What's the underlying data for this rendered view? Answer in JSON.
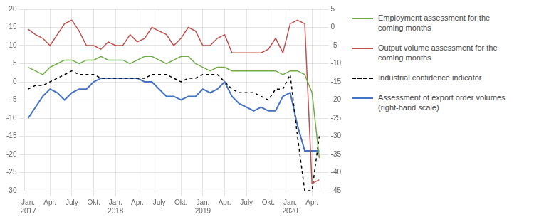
{
  "chart_data": {
    "type": "line",
    "categories": [
      "Jan.\n2017",
      null,
      null,
      "Apr.",
      null,
      null,
      "July",
      null,
      null,
      "Okt.",
      null,
      null,
      "Jan.\n2018",
      null,
      null,
      "Apr.",
      null,
      null,
      "July",
      null,
      null,
      "Okt.",
      null,
      null,
      "Jan.\n2019",
      null,
      null,
      "Apr.",
      null,
      null,
      "July",
      null,
      null,
      "Okt.",
      null,
      null,
      "Jan.\n2020",
      null,
      null,
      "Apr.",
      null
    ],
    "series": [
      {
        "name": "Employment assessment for the\ncoming months",
        "color": "#70ad47",
        "values": [
          4,
          3,
          2,
          4,
          5,
          6,
          6,
          5,
          6,
          6,
          7,
          6,
          6,
          6,
          5,
          6,
          7,
          7,
          6,
          5,
          6,
          7,
          7,
          5,
          4,
          3,
          4,
          4,
          3,
          3,
          3,
          3,
          3,
          3,
          3,
          2,
          3,
          3,
          2,
          -3,
          -21
        ]
      },
      {
        "name": "Output volume assessment for the\ncoming months",
        "color": "#c0504d",
        "values": [
          14.5,
          13,
          12,
          10,
          13,
          16,
          17,
          14,
          10,
          10,
          9,
          11,
          10,
          10,
          13,
          11,
          12,
          15,
          14,
          13,
          10,
          12,
          15,
          14,
          10,
          10,
          12,
          13,
          8,
          8,
          8,
          8,
          8,
          9,
          12,
          8,
          16,
          17,
          16,
          -28,
          -27
        ]
      },
      {
        "name": "Industrial confidence indicator",
        "color": "#000000",
        "line_style": "dashed",
        "values": [
          -2,
          -1,
          -1,
          0,
          1,
          2,
          3,
          2,
          2,
          2,
          1,
          1,
          1,
          1,
          1,
          1,
          1,
          2,
          2,
          2,
          1,
          0,
          1,
          1,
          2,
          2,
          2,
          0,
          -2,
          -3,
          -3,
          -3,
          -4,
          -5,
          -2,
          -2,
          2,
          -15,
          -30,
          -30,
          -15
        ]
      },
      {
        "name": "Assessment of export order volumes\n(right-hand scale)",
        "color": "#4472c4",
        "axis": "y2",
        "values": [
          -25,
          -22,
          -19,
          -17,
          -18,
          -20,
          -18,
          -17,
          -17,
          -15,
          -14,
          -14,
          -14,
          -14,
          -14,
          -14,
          -15,
          -15,
          -17,
          -19,
          -19,
          -20,
          -19,
          -19,
          -17,
          -18,
          -17,
          -15,
          -19,
          -21,
          -22,
          -23,
          -22,
          -23,
          -23,
          -19,
          -18,
          -27,
          -34,
          -34,
          -34
        ]
      }
    ],
    "ylim": [
      -30,
      20
    ],
    "yticks": [
      -30,
      -25,
      -20,
      -15,
      -10,
      -5,
      0,
      5,
      10,
      15,
      20
    ],
    "y2lim": [
      -45,
      5
    ],
    "y2ticks": [
      -45,
      -40,
      -35,
      -30,
      -25,
      -20,
      -15,
      -10,
      -5,
      0,
      5
    ],
    "grid": true,
    "legend": "right"
  }
}
